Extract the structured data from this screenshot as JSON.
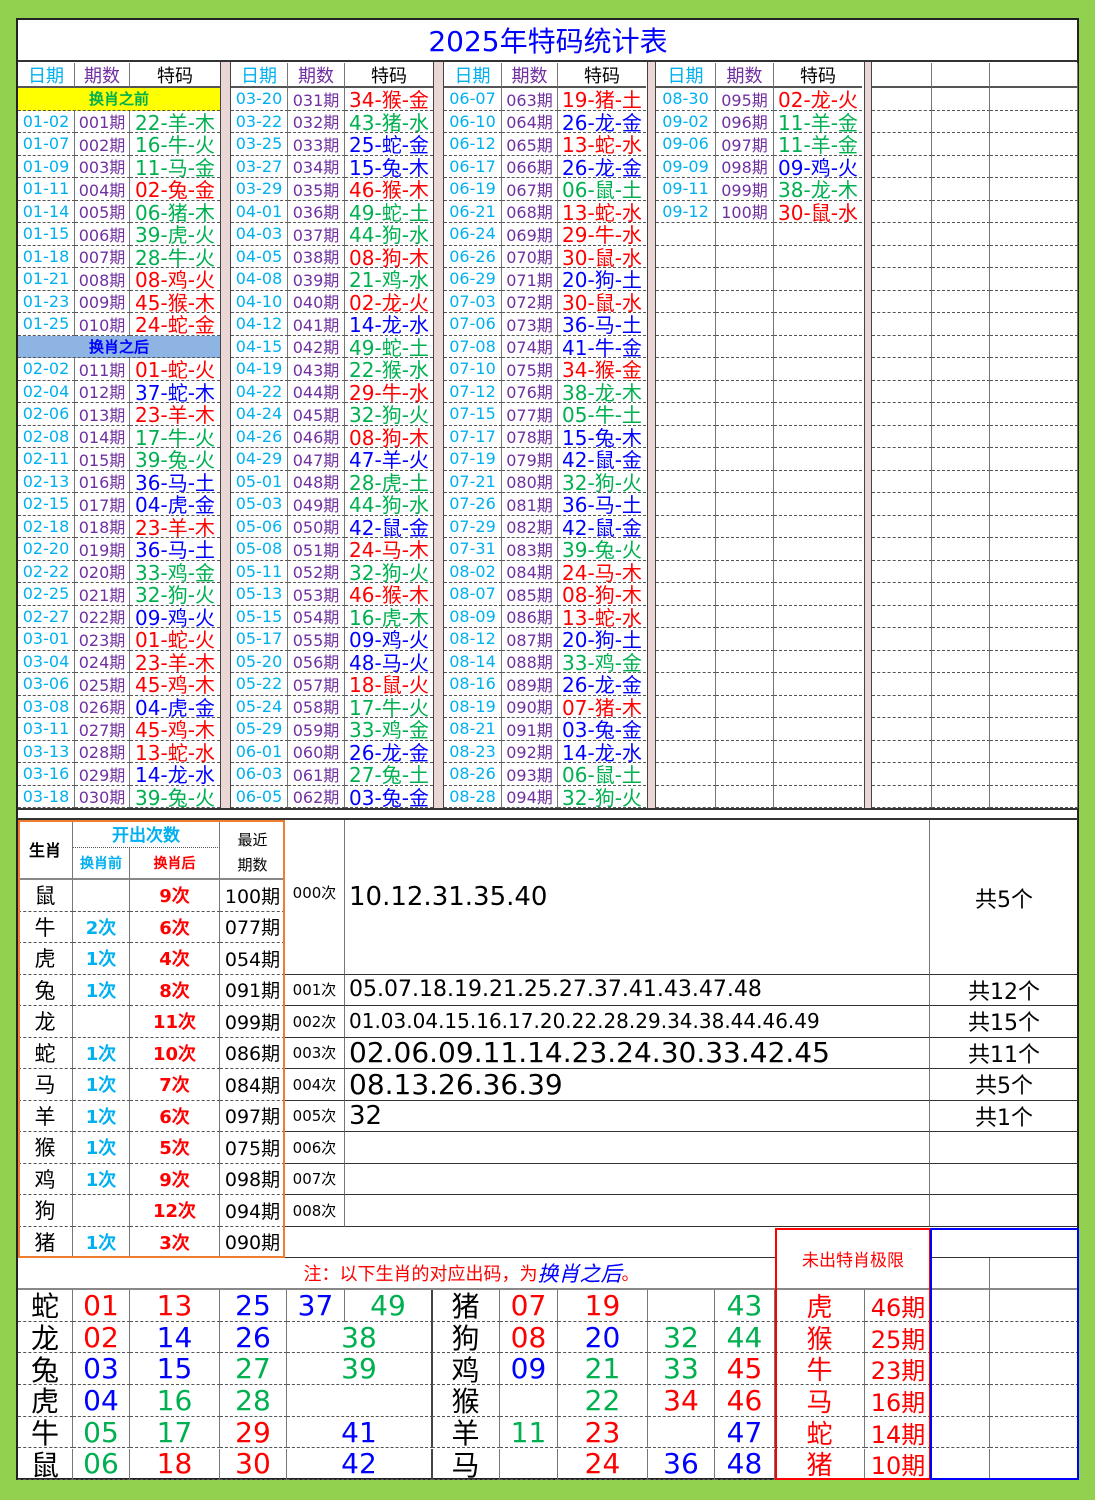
{
  "title": "2025年特码统计表",
  "headers": {
    "date": "日期",
    "issue": "期数",
    "code": "特码"
  },
  "section_before": "换肖之前",
  "section_after": "换肖之后",
  "colors": {
    "red": "#ff0000",
    "blue": "#0000ff",
    "green": "#00b050",
    "date": "#00b0f0",
    "issue": "#7030a0",
    "frame": "#92d050",
    "yellow": "#ffff00",
    "section_blue": "#8db4e2",
    "orange": "#ed7d31"
  },
  "blocks": [
    [
      [
        "01-02",
        "001期",
        "22-羊-木"
      ],
      [
        "01-07",
        "002期",
        "16-牛-火"
      ],
      [
        "01-09",
        "003期",
        "11-马-金"
      ],
      [
        "01-11",
        "004期",
        "02-兔-金"
      ],
      [
        "01-14",
        "005期",
        "06-猪-木"
      ],
      [
        "01-15",
        "006期",
        "39-虎-火"
      ],
      [
        "01-18",
        "007期",
        "28-牛-火"
      ],
      [
        "01-21",
        "008期",
        "08-鸡-火"
      ],
      [
        "01-23",
        "009期",
        "45-猴-木"
      ],
      [
        "01-25",
        "010期",
        "24-蛇-金"
      ],
      [
        "02-02",
        "011期",
        "01-蛇-火"
      ],
      [
        "02-04",
        "012期",
        "37-蛇-木"
      ],
      [
        "02-06",
        "013期",
        "23-羊-木"
      ],
      [
        "02-08",
        "014期",
        "17-牛-火"
      ],
      [
        "02-11",
        "015期",
        "39-兔-火"
      ],
      [
        "02-13",
        "016期",
        "36-马-土"
      ],
      [
        "02-15",
        "017期",
        "04-虎-金"
      ],
      [
        "02-18",
        "018期",
        "23-羊-木"
      ],
      [
        "02-20",
        "019期",
        "36-马-土"
      ],
      [
        "02-22",
        "020期",
        "33-鸡-金"
      ],
      [
        "02-25",
        "021期",
        "32-狗-火"
      ],
      [
        "02-27",
        "022期",
        "09-鸡-火"
      ],
      [
        "03-01",
        "023期",
        "01-蛇-火"
      ],
      [
        "03-04",
        "024期",
        "23-羊-木"
      ],
      [
        "03-06",
        "025期",
        "45-鸡-木"
      ],
      [
        "03-08",
        "026期",
        "04-虎-金"
      ],
      [
        "03-11",
        "027期",
        "45-鸡-木"
      ],
      [
        "03-13",
        "028期",
        "13-蛇-水"
      ],
      [
        "03-16",
        "029期",
        "14-龙-水"
      ],
      [
        "03-18",
        "030期",
        "39-兔-火"
      ]
    ],
    [
      [
        "03-20",
        "031期",
        "34-猴-金"
      ],
      [
        "03-22",
        "032期",
        "43-猪-水"
      ],
      [
        "03-25",
        "033期",
        "25-蛇-金"
      ],
      [
        "03-27",
        "034期",
        "15-兔-木"
      ],
      [
        "03-29",
        "035期",
        "46-猴-木"
      ],
      [
        "04-01",
        "036期",
        "49-蛇-土"
      ],
      [
        "04-03",
        "037期",
        "44-狗-水"
      ],
      [
        "04-05",
        "038期",
        "08-狗-木"
      ],
      [
        "04-08",
        "039期",
        "21-鸡-水"
      ],
      [
        "04-10",
        "040期",
        "02-龙-火"
      ],
      [
        "04-12",
        "041期",
        "14-龙-水"
      ],
      [
        "04-15",
        "042期",
        "49-蛇-土"
      ],
      [
        "04-19",
        "043期",
        "22-猴-水"
      ],
      [
        "04-22",
        "044期",
        "29-牛-水"
      ],
      [
        "04-24",
        "045期",
        "32-狗-火"
      ],
      [
        "04-26",
        "046期",
        "08-狗-木"
      ],
      [
        "04-29",
        "047期",
        "47-羊-火"
      ],
      [
        "05-01",
        "048期",
        "28-虎-土"
      ],
      [
        "05-03",
        "049期",
        "44-狗-水"
      ],
      [
        "05-06",
        "050期",
        "42-鼠-金"
      ],
      [
        "05-08",
        "051期",
        "24-马-木"
      ],
      [
        "05-11",
        "052期",
        "32-狗-火"
      ],
      [
        "05-13",
        "053期",
        "46-猴-木"
      ],
      [
        "05-15",
        "054期",
        "16-虎-木"
      ],
      [
        "05-17",
        "055期",
        "09-鸡-火"
      ],
      [
        "05-20",
        "056期",
        "48-马-火"
      ],
      [
        "05-22",
        "057期",
        "18-鼠-火"
      ],
      [
        "05-24",
        "058期",
        "17-牛-火"
      ],
      [
        "05-29",
        "059期",
        "33-鸡-金"
      ],
      [
        "06-01",
        "060期",
        "26-龙-金"
      ],
      [
        "06-03",
        "061期",
        "27-兔-土"
      ],
      [
        "06-05",
        "062期",
        "03-兔-金"
      ]
    ],
    [
      [
        "06-07",
        "063期",
        "19-猪-土"
      ],
      [
        "06-10",
        "064期",
        "26-龙-金"
      ],
      [
        "06-12",
        "065期",
        "13-蛇-水"
      ],
      [
        "06-17",
        "066期",
        "26-龙-金"
      ],
      [
        "06-19",
        "067期",
        "06-鼠-土"
      ],
      [
        "06-21",
        "068期",
        "13-蛇-水"
      ],
      [
        "06-24",
        "069期",
        "29-牛-水"
      ],
      [
        "06-26",
        "070期",
        "30-鼠-水"
      ],
      [
        "06-29",
        "071期",
        "20-狗-土"
      ],
      [
        "07-03",
        "072期",
        "30-鼠-水"
      ],
      [
        "07-06",
        "073期",
        "36-马-土"
      ],
      [
        "07-08",
        "074期",
        "41-牛-金"
      ],
      [
        "07-10",
        "075期",
        "34-猴-金"
      ],
      [
        "07-12",
        "076期",
        "38-龙-木"
      ],
      [
        "07-15",
        "077期",
        "05-牛-土"
      ],
      [
        "07-17",
        "078期",
        "15-兔-木"
      ],
      [
        "07-19",
        "079期",
        "42-鼠-金"
      ],
      [
        "07-21",
        "080期",
        "32-狗-火"
      ],
      [
        "07-26",
        "081期",
        "36-马-土"
      ],
      [
        "07-29",
        "082期",
        "42-鼠-金"
      ],
      [
        "07-31",
        "083期",
        "39-兔-火"
      ],
      [
        "08-02",
        "084期",
        "24-马-木"
      ],
      [
        "08-07",
        "085期",
        "08-狗-木"
      ],
      [
        "08-09",
        "086期",
        "13-蛇-水"
      ],
      [
        "08-12",
        "087期",
        "20-狗-土"
      ],
      [
        "08-14",
        "088期",
        "33-鸡-金"
      ],
      [
        "08-16",
        "089期",
        "26-龙-金"
      ],
      [
        "08-19",
        "090期",
        "07-猪-木"
      ],
      [
        "08-21",
        "091期",
        "03-兔-金"
      ],
      [
        "08-23",
        "092期",
        "14-龙-水"
      ],
      [
        "08-26",
        "093期",
        "06-鼠-土"
      ],
      [
        "08-28",
        "094期",
        "32-狗-火"
      ]
    ],
    [
      [
        "08-30",
        "095期",
        "02-龙-火"
      ],
      [
        "09-02",
        "096期",
        "11-羊-金"
      ],
      [
        "09-06",
        "097期",
        "11-羊-金"
      ],
      [
        "09-09",
        "098期",
        "09-鸡-火"
      ],
      [
        "09-11",
        "099期",
        "38-龙-木"
      ],
      [
        "09-12",
        "100期",
        "30-鼠-水"
      ]
    ]
  ],
  "stats": {
    "h_zodiac": "生肖",
    "h_count": "开出次数",
    "h_before": "换肖前",
    "h_after": "换肖后",
    "h_recent1": "最近",
    "h_recent2": "期数",
    "rows": [
      [
        "鼠",
        "",
        "9次",
        "100期"
      ],
      [
        "牛",
        "2次",
        "6次",
        "077期"
      ],
      [
        "虎",
        "1次",
        "4次",
        "054期"
      ],
      [
        "兔",
        "1次",
        "8次",
        "091期"
      ],
      [
        "龙",
        "",
        "11次",
        "099期"
      ],
      [
        "蛇",
        "1次",
        "10次",
        "086期"
      ],
      [
        "马",
        "1次",
        "7次",
        "084期"
      ],
      [
        "羊",
        "1次",
        "6次",
        "097期"
      ],
      [
        "猴",
        "1次",
        "5次",
        "075期"
      ],
      [
        "鸡",
        "1次",
        "9次",
        "098期"
      ],
      [
        "狗",
        "",
        "12次",
        "094期"
      ],
      [
        "猪",
        "1次",
        "3次",
        "090期"
      ]
    ]
  },
  "frequency": [
    {
      "label": "000次",
      "numbers": "10.12.31.35.40",
      "total": "共5个"
    },
    {
      "label": "001次",
      "numbers": "05.07.18.19.21.25.27.37.41.43.47.48",
      "total": "共12个"
    },
    {
      "label": "002次",
      "numbers": "01.03.04.15.16.17.20.22.28.29.34.38.44.46.49",
      "total": "共15个"
    },
    {
      "label": "003次",
      "numbers": "02.06.09.11.14.23.24.30.33.42.45",
      "total": "共11个"
    },
    {
      "label": "004次",
      "numbers": "08.13.26.36.39",
      "total": "共5个"
    },
    {
      "label": "005次",
      "numbers": "32",
      "total": "共1个"
    },
    {
      "label": "006次",
      "numbers": "",
      "total": ""
    },
    {
      "label": "007次",
      "numbers": "",
      "total": ""
    },
    {
      "label": "008次",
      "numbers": "",
      "total": ""
    }
  ],
  "note": {
    "prefix": "注：以下生肖的对应出码，为",
    "emph": "换肖之后",
    "suffix": "。"
  },
  "limit_title": "未出特肖极限",
  "zodiac_numbers": {
    "left": [
      [
        "蛇",
        "01",
        "13",
        "25",
        "37",
        "49"
      ],
      [
        "龙",
        "02",
        "14",
        "26",
        "",
        "38"
      ],
      [
        "兔",
        "03",
        "15",
        "27",
        "",
        "39"
      ],
      [
        "虎",
        "04",
        "16",
        "28",
        "",
        ""
      ],
      [
        "牛",
        "05",
        "17",
        "29",
        "",
        "41"
      ],
      [
        "鼠",
        "06",
        "18",
        "30",
        "",
        "42"
      ]
    ],
    "right": [
      [
        "猪",
        "07",
        "19",
        "",
        "43"
      ],
      [
        "狗",
        "08",
        "20",
        "32",
        "44"
      ],
      [
        "鸡",
        "09",
        "21",
        "33",
        "45"
      ],
      [
        "猴",
        "",
        "22",
        "34",
        "46"
      ],
      [
        "羊",
        "11",
        "23",
        "",
        "47"
      ],
      [
        "马",
        "",
        "24",
        "36",
        "48"
      ]
    ]
  },
  "limits": [
    [
      "虎",
      "46期"
    ],
    [
      "猴",
      "25期"
    ],
    [
      "牛",
      "23期"
    ],
    [
      "马",
      "16期"
    ],
    [
      "蛇",
      "14期"
    ],
    [
      "猪",
      "10期"
    ]
  ]
}
